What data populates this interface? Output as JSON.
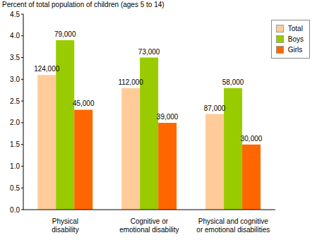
{
  "chart_data": {
    "type": "bar",
    "y_label": "Percent of total population of children (ages 5 to 14)",
    "categories": [
      "Physical disability",
      "Cognitive or emotional disability",
      "Physical and cognitive or emotional disabilities"
    ],
    "series": [
      {
        "name": "Total",
        "color": "#ffcc99",
        "values": [
          3.1,
          2.8,
          2.2
        ],
        "count_labels": [
          "124,000",
          "112,000",
          "87,000"
        ]
      },
      {
        "name": "Boys",
        "color": "#99cc00",
        "values": [
          3.9,
          3.5,
          2.8
        ],
        "count_labels": [
          "79,000",
          "73,000",
          "58,000"
        ]
      },
      {
        "name": "Girls",
        "color": "#ff6600",
        "values": [
          2.3,
          2.0,
          1.5
        ],
        "count_labels": [
          "45,000",
          "39,000",
          "30,000"
        ]
      }
    ],
    "ylim": [
      0,
      4.5
    ],
    "yticks": [
      {
        "value": 0,
        "label": "0.0"
      },
      0.5,
      {
        "value": 1,
        "label": "1.0"
      },
      1.5,
      {
        "value": 2,
        "label": "2.0"
      },
      2.5,
      {
        "value": 3,
        "label": "3.0"
      },
      3.5,
      {
        "value": 4,
        "label": "4.0"
      },
      4.5
    ],
    "legend": "upper right",
    "grid": false
  }
}
